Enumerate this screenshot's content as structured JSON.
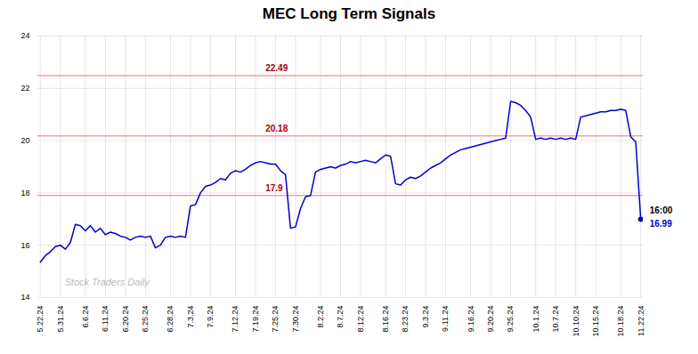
{
  "chart_data": {
    "type": "line",
    "title": "MEC Long Term Signals",
    "background_color": "#ffffff",
    "color": "#0000cc",
    "grid": true,
    "ylim": [
      14,
      24
    ],
    "yticks": [
      14,
      16,
      18,
      20,
      22,
      24
    ],
    "watermark": "Stock Traders Daily",
    "hlines": [
      {
        "y": 22.49,
        "label": "22.49",
        "color": "#f5a0a0",
        "label_color": "#aa0000"
      },
      {
        "y": 20.18,
        "label": "20.18",
        "color": "#f5a0a0",
        "label_color": "#aa0000"
      },
      {
        "y": 17.9,
        "label": "17.9",
        "color": "#f5a0a0",
        "label_color": "#aa0000"
      }
    ],
    "end_point": {
      "time_label": "16:00",
      "price_label": "16.99",
      "color": "#0000cc",
      "marker": "circle"
    },
    "categories": [
      "5.22.24",
      null,
      null,
      null,
      "5.31.24",
      null,
      null,
      null,
      null,
      "6.6.24",
      null,
      null,
      null,
      "6.11.24",
      null,
      null,
      null,
      "6.20.24",
      null,
      null,
      null,
      "6.25.24",
      null,
      null,
      null,
      null,
      "6.28.24",
      null,
      null,
      null,
      "7.3.24",
      null,
      null,
      null,
      "7.9.24",
      null,
      null,
      null,
      null,
      "7.12.24",
      null,
      null,
      null,
      "7.19.24",
      null,
      null,
      null,
      "7.25.24",
      null,
      null,
      null,
      "7.30.24",
      null,
      null,
      null,
      null,
      "8.2.24",
      null,
      null,
      null,
      "8.7.24",
      null,
      null,
      null,
      "8.12.24",
      null,
      null,
      null,
      null,
      "8.16.24",
      null,
      null,
      null,
      "8.23.24",
      null,
      null,
      null,
      "9.3.24",
      null,
      null,
      null,
      "9.11.24",
      null,
      null,
      null,
      null,
      "9.16.24",
      null,
      null,
      null,
      "9.20.24",
      null,
      null,
      null,
      "9.25.24",
      null,
      null,
      null,
      null,
      "10.1.24",
      null,
      null,
      null,
      "10.7.24",
      null,
      null,
      null,
      "10.10.24",
      null,
      null,
      null,
      "10.15.24",
      null,
      null,
      null,
      null,
      "10.18.24",
      null,
      null,
      null,
      "11.22.24"
    ],
    "values": [
      15.35,
      15.6,
      15.75,
      15.95,
      16.0,
      15.85,
      16.1,
      16.8,
      16.75,
      16.55,
      16.75,
      16.5,
      16.65,
      16.4,
      16.5,
      16.45,
      16.35,
      16.3,
      16.2,
      16.3,
      16.35,
      16.3,
      16.35,
      15.9,
      16.0,
      16.3,
      16.35,
      16.3,
      16.35,
      16.3,
      17.5,
      17.55,
      18.0,
      18.25,
      18.3,
      18.4,
      18.55,
      18.5,
      18.75,
      18.85,
      18.8,
      18.9,
      19.05,
      19.15,
      19.2,
      19.15,
      19.1,
      19.1,
      18.85,
      18.7,
      16.65,
      16.7,
      17.4,
      17.85,
      17.9,
      18.8,
      18.9,
      18.95,
      19.0,
      18.95,
      19.05,
      19.1,
      19.2,
      19.15,
      19.2,
      19.25,
      19.2,
      19.15,
      19.3,
      19.45,
      19.4,
      18.35,
      18.3,
      18.5,
      18.6,
      18.55,
      18.65,
      18.8,
      18.95,
      19.05,
      19.15,
      19.3,
      19.45,
      19.55,
      19.65,
      19.7,
      19.75,
      19.8,
      19.85,
      19.9,
      19.95,
      20.0,
      20.05,
      20.1,
      21.5,
      21.45,
      21.35,
      21.15,
      20.9,
      20.05,
      20.1,
      20.05,
      20.1,
      20.05,
      20.1,
      20.05,
      20.1,
      20.05,
      20.9,
      20.95,
      21.0,
      21.05,
      21.1,
      21.1,
      21.15,
      21.15,
      21.2,
      21.15,
      20.15,
      19.95,
      16.99
    ]
  }
}
